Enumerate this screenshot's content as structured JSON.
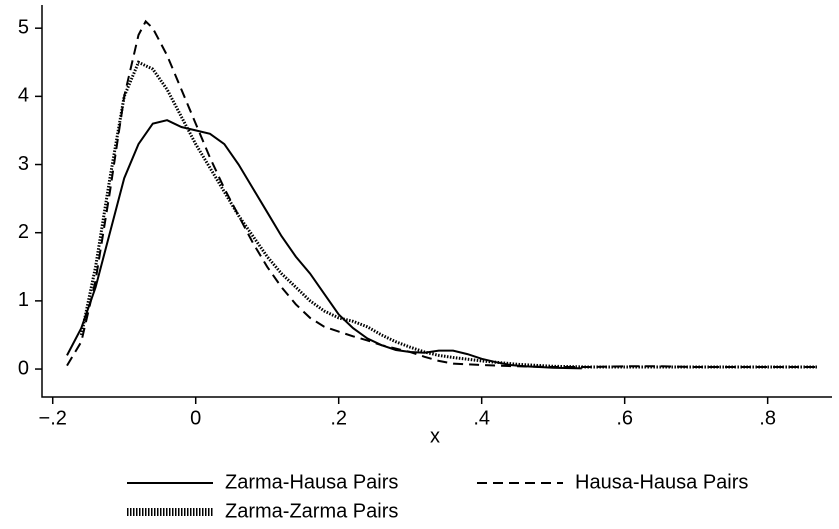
{
  "chart_data": {
    "type": "line",
    "x_label": "x",
    "xlim": [
      -0.215,
      0.89
    ],
    "ylim": [
      -0.41,
      5.34
    ],
    "xticks": [
      {
        "value": -0.2,
        "label": "−.2"
      },
      0,
      {
        "value": 0.2,
        "label": ".2"
      },
      {
        "value": 0.4,
        "label": ".4"
      },
      {
        "value": 0.6,
        "label": ".6"
      },
      {
        "value": 0.8,
        "label": ".8"
      }
    ],
    "yticks": [
      0,
      1,
      2,
      3,
      4,
      5
    ],
    "grid": false,
    "legend": "bottom",
    "series": [
      {
        "name": "Zarma-Hausa Pairs",
        "color": "#000000",
        "style": "solid",
        "x": [
          -0.18,
          -0.16,
          -0.14,
          -0.12,
          -0.1,
          -0.08,
          -0.06,
          -0.04,
          -0.02,
          0,
          0.02,
          0.04,
          0.06,
          0.08,
          0.1,
          0.12,
          0.14,
          0.16,
          0.18,
          0.2,
          0.22,
          0.24,
          0.26,
          0.28,
          0.3,
          0.32,
          0.34,
          0.36,
          0.38,
          0.4,
          0.42,
          0.44,
          0.46,
          0.5,
          0.54
        ],
        "values": [
          0.2,
          0.6,
          1.2,
          2.0,
          2.8,
          3.3,
          3.6,
          3.65,
          3.55,
          3.5,
          3.45,
          3.3,
          3.0,
          2.65,
          2.3,
          1.95,
          1.65,
          1.4,
          1.1,
          0.8,
          0.6,
          0.45,
          0.35,
          0.28,
          0.25,
          0.24,
          0.27,
          0.27,
          0.22,
          0.15,
          0.1,
          0.06,
          0.04,
          0.02,
          0.01
        ]
      },
      {
        "name": "Hausa-Hausa Pairs",
        "color": "#000000",
        "style": "dashed",
        "x": [
          -0.18,
          -0.16,
          -0.14,
          -0.12,
          -0.1,
          -0.08,
          -0.07,
          -0.06,
          -0.04,
          -0.02,
          0,
          0.02,
          0.04,
          0.06,
          0.08,
          0.1,
          0.12,
          0.14,
          0.16,
          0.18,
          0.2,
          0.22,
          0.24,
          0.26,
          0.28,
          0.3,
          0.32,
          0.34,
          0.36,
          0.4,
          0.45,
          0.5,
          0.55,
          0.6,
          0.65,
          0.7,
          0.8,
          0.87
        ],
        "values": [
          0.05,
          0.4,
          1.3,
          2.6,
          4.0,
          4.9,
          5.1,
          5.0,
          4.6,
          4.1,
          3.6,
          3.1,
          2.65,
          2.25,
          1.85,
          1.5,
          1.2,
          0.95,
          0.75,
          0.62,
          0.55,
          0.48,
          0.42,
          0.35,
          0.3,
          0.25,
          0.18,
          0.12,
          0.08,
          0.06,
          0.04,
          0.03,
          0.03,
          0.04,
          0.04,
          0.03,
          0.03,
          0.03
        ]
      },
      {
        "name": "Zarma-Zarma Pairs",
        "color": "#000000",
        "style": "dotted",
        "x": [
          -0.16,
          -0.14,
          -0.12,
          -0.1,
          -0.08,
          -0.06,
          -0.04,
          -0.02,
          0,
          0.02,
          0.04,
          0.06,
          0.08,
          0.1,
          0.12,
          0.14,
          0.16,
          0.18,
          0.2,
          0.22,
          0.24,
          0.26,
          0.28,
          0.3,
          0.32,
          0.34,
          0.36,
          0.4,
          0.45,
          0.5,
          0.55,
          0.6,
          0.7,
          0.8,
          0.87
        ],
        "values": [
          0.5,
          1.5,
          2.8,
          4.0,
          4.5,
          4.4,
          4.1,
          3.7,
          3.3,
          2.95,
          2.6,
          2.25,
          1.95,
          1.65,
          1.4,
          1.2,
          1.0,
          0.85,
          0.75,
          0.7,
          0.62,
          0.5,
          0.4,
          0.32,
          0.25,
          0.2,
          0.17,
          0.12,
          0.07,
          0.04,
          0.03,
          0.03,
          0.03,
          0.03,
          0.03
        ]
      }
    ]
  }
}
